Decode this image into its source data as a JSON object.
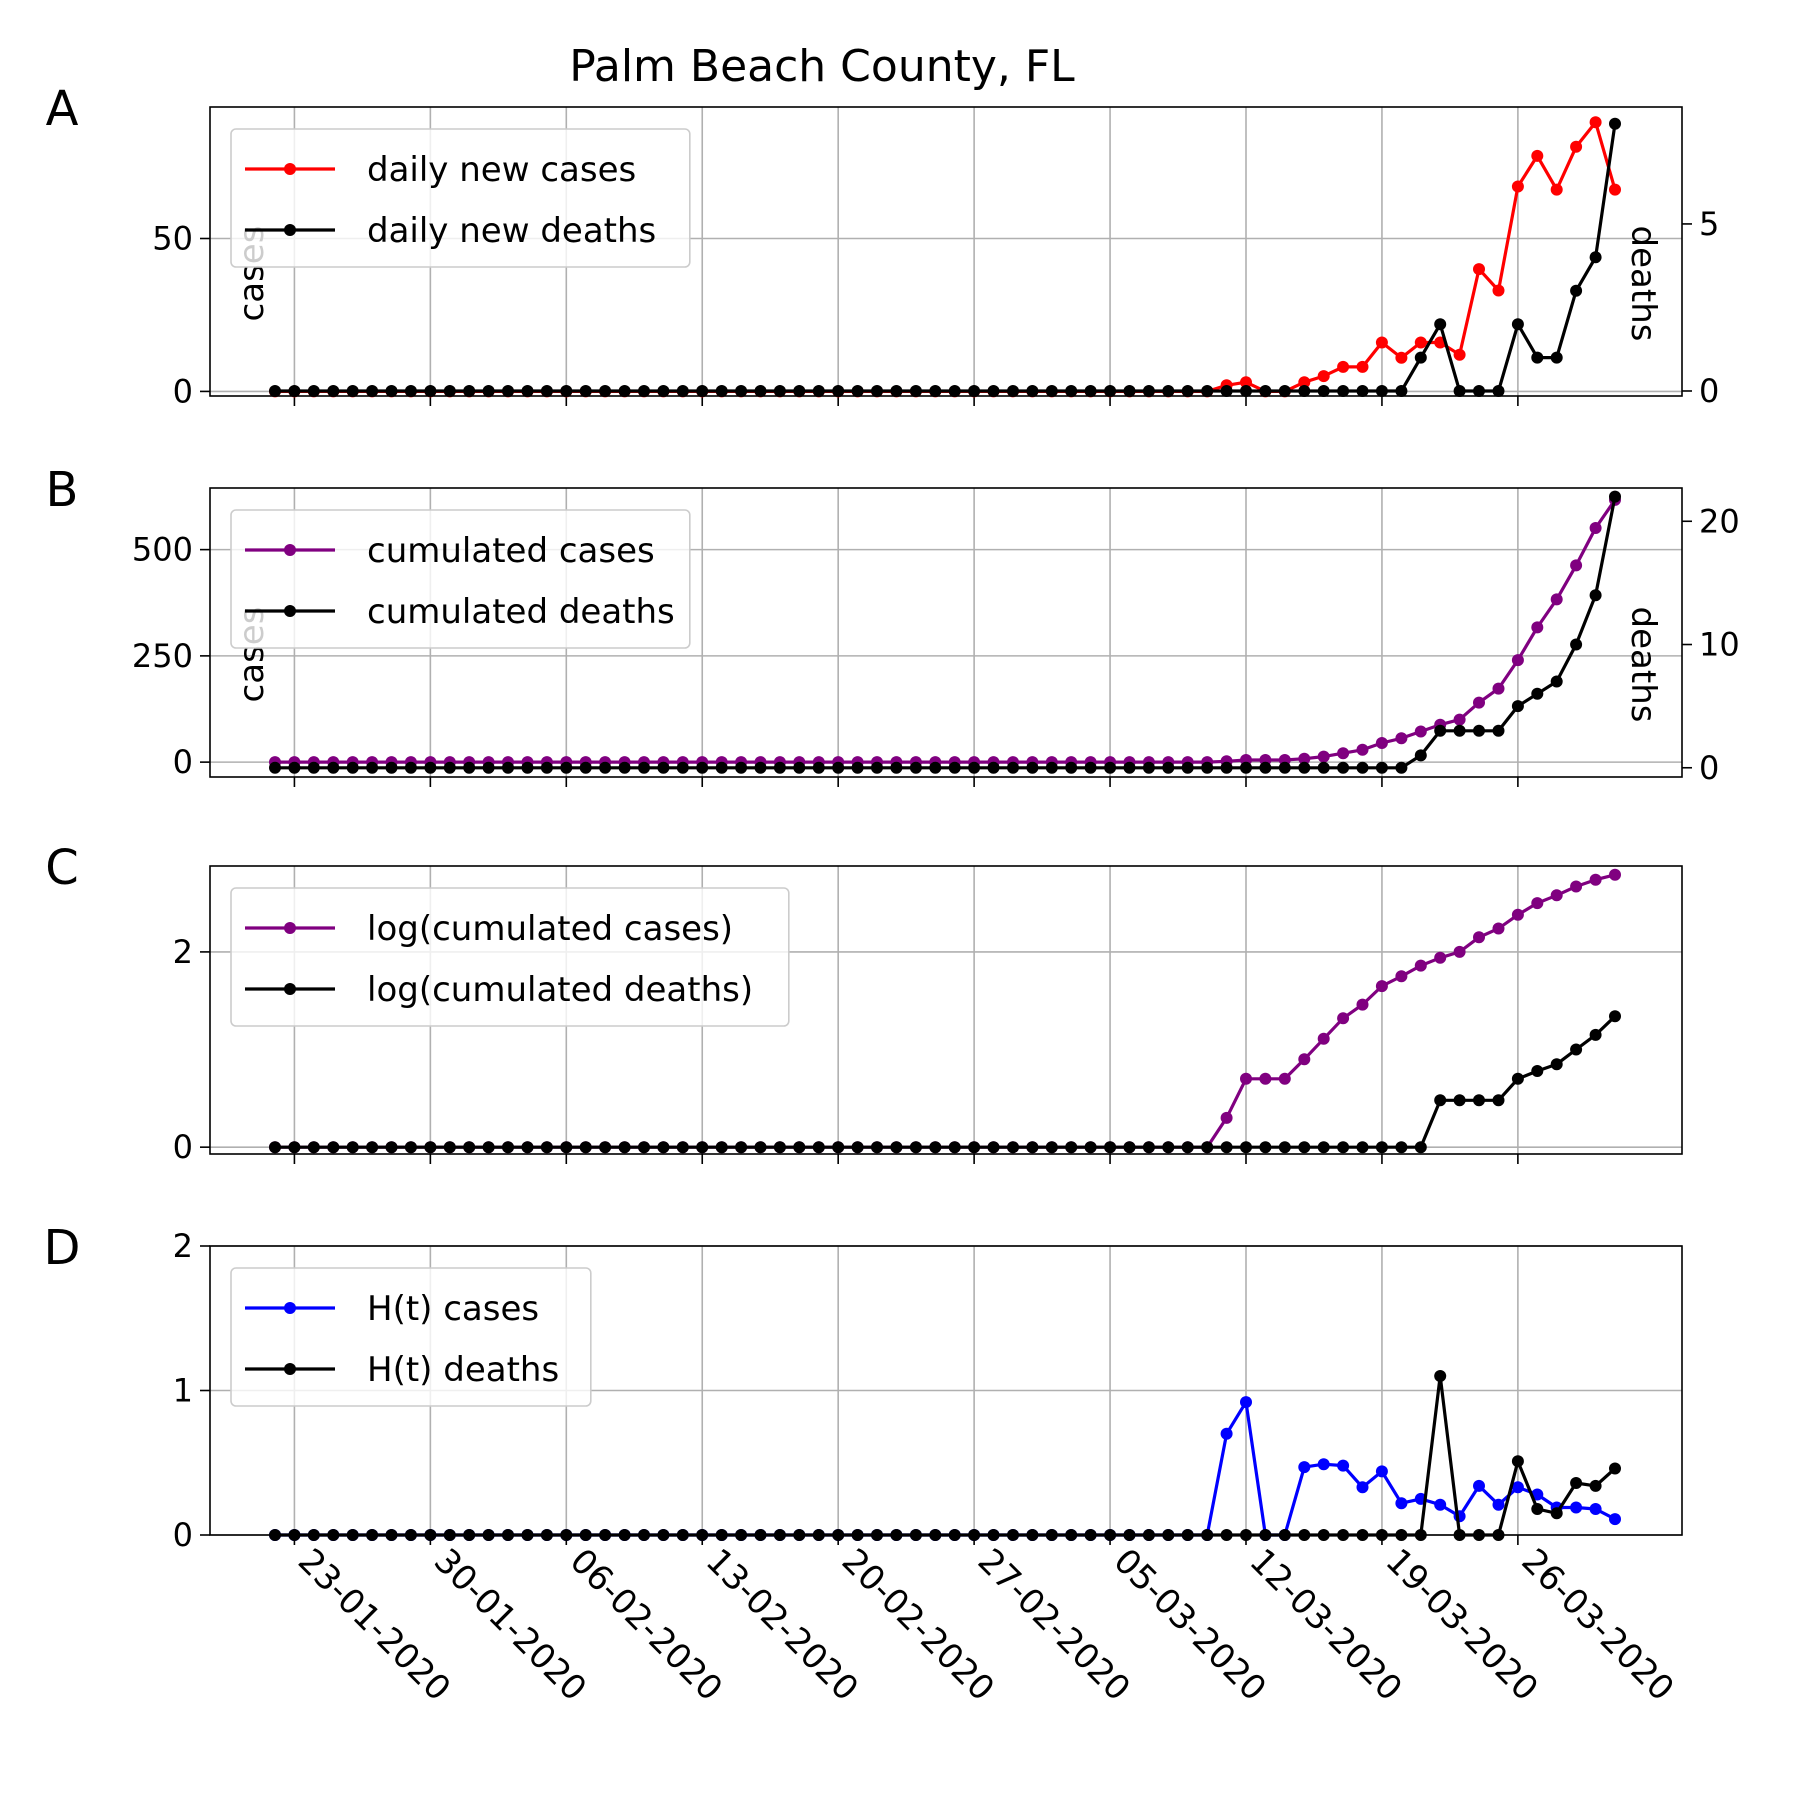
{
  "figure": {
    "title": "Palm Beach County, FL",
    "xtick_labels": [
      "23-01-2020",
      "30-01-2020",
      "06-02-2020",
      "13-02-2020",
      "20-02-2020",
      "27-02-2020",
      "05-03-2020",
      "12-03-2020",
      "19-03-2020",
      "26-03-2020"
    ]
  },
  "chart_data": [
    {
      "panel": "A",
      "type": "line",
      "x_start": "2020-01-22",
      "x_end": "2020-03-31",
      "ylabel_left": "cases",
      "ylabel_right": "deaths",
      "left_ylim": [
        -1.5,
        93
      ],
      "left_yticks": [
        0,
        50
      ],
      "right_ylim": [
        -0.15,
        8.5
      ],
      "right_yticks": [
        0,
        5
      ],
      "legend_placement": "top-left",
      "grid": true,
      "series": [
        {
          "name": "daily new cases",
          "color": "#ff0000",
          "axis": "left",
          "values": [
            0,
            0,
            0,
            0,
            0,
            0,
            0,
            0,
            0,
            0,
            0,
            0,
            0,
            0,
            0,
            0,
            0,
            0,
            0,
            0,
            0,
            0,
            0,
            0,
            0,
            0,
            0,
            0,
            0,
            0,
            0,
            0,
            0,
            0,
            0,
            0,
            0,
            0,
            0,
            0,
            0,
            0,
            0,
            0,
            0,
            0,
            0,
            0,
            0,
            2,
            3,
            0,
            0,
            3,
            5,
            8,
            8,
            16,
            11,
            16,
            16,
            12,
            40,
            33,
            67,
            77,
            66,
            80,
            88,
            66
          ]
        },
        {
          "name": "daily new deaths",
          "color": "#000000",
          "axis": "right",
          "values": [
            0,
            0,
            0,
            0,
            0,
            0,
            0,
            0,
            0,
            0,
            0,
            0,
            0,
            0,
            0,
            0,
            0,
            0,
            0,
            0,
            0,
            0,
            0,
            0,
            0,
            0,
            0,
            0,
            0,
            0,
            0,
            0,
            0,
            0,
            0,
            0,
            0,
            0,
            0,
            0,
            0,
            0,
            0,
            0,
            0,
            0,
            0,
            0,
            0,
            0,
            0,
            0,
            0,
            0,
            0,
            0,
            0,
            0,
            0,
            1,
            2,
            0,
            0,
            0,
            2,
            1,
            1,
            3,
            4,
            8
          ]
        }
      ]
    },
    {
      "panel": "B",
      "type": "line",
      "x_start": "2020-01-22",
      "x_end": "2020-03-31",
      "ylabel_left": "cases",
      "ylabel_right": "deaths",
      "left_ylim": [
        -35,
        645
      ],
      "left_yticks": [
        0,
        250,
        500
      ],
      "right_ylim": [
        -0.75,
        22.7
      ],
      "right_yticks": [
        0,
        10,
        20
      ],
      "legend_placement": "top-left",
      "grid": true,
      "series": [
        {
          "name": "cumulated cases",
          "color": "#800080",
          "axis": "left",
          "values": [
            0,
            0,
            0,
            0,
            0,
            0,
            0,
            0,
            0,
            0,
            0,
            0,
            0,
            0,
            0,
            0,
            0,
            0,
            0,
            0,
            0,
            0,
            0,
            0,
            0,
            0,
            0,
            0,
            0,
            0,
            0,
            0,
            0,
            0,
            0,
            0,
            0,
            0,
            0,
            0,
            0,
            0,
            0,
            0,
            0,
            0,
            0,
            0,
            0,
            2,
            5,
            5,
            5,
            8,
            13,
            21,
            29,
            45,
            56,
            72,
            88,
            100,
            140,
            173,
            240,
            317,
            383,
            463,
            551,
            617
          ]
        },
        {
          "name": "cumulated deaths",
          "color": "#000000",
          "axis": "right",
          "values": [
            0,
            0,
            0,
            0,
            0,
            0,
            0,
            0,
            0,
            0,
            0,
            0,
            0,
            0,
            0,
            0,
            0,
            0,
            0,
            0,
            0,
            0,
            0,
            0,
            0,
            0,
            0,
            0,
            0,
            0,
            0,
            0,
            0,
            0,
            0,
            0,
            0,
            0,
            0,
            0,
            0,
            0,
            0,
            0,
            0,
            0,
            0,
            0,
            0,
            0,
            0,
            0,
            0,
            0,
            0,
            0,
            0,
            0,
            0,
            1,
            3,
            3,
            3,
            3,
            5,
            6,
            7,
            10,
            14,
            22
          ]
        }
      ]
    },
    {
      "panel": "C",
      "type": "line",
      "x_start": "2020-01-22",
      "x_end": "2020-03-31",
      "ylim": [
        -0.07,
        2.88
      ],
      "yticks": [
        0,
        2
      ],
      "legend_placement": "top-left",
      "grid": true,
      "series": [
        {
          "name": "log(cumulated cases)",
          "color": "#800080",
          "values": [
            0,
            0,
            0,
            0,
            0,
            0,
            0,
            0,
            0,
            0,
            0,
            0,
            0,
            0,
            0,
            0,
            0,
            0,
            0,
            0,
            0,
            0,
            0,
            0,
            0,
            0,
            0,
            0,
            0,
            0,
            0,
            0,
            0,
            0,
            0,
            0,
            0,
            0,
            0,
            0,
            0,
            0,
            0,
            0,
            0,
            0,
            0,
            0,
            0,
            0.3,
            0.7,
            0.7,
            0.7,
            0.9,
            1.11,
            1.32,
            1.46,
            1.65,
            1.75,
            1.86,
            1.94,
            2.0,
            2.15,
            2.24,
            2.38,
            2.5,
            2.58,
            2.67,
            2.74,
            2.79
          ]
        },
        {
          "name": "log(cumulated deaths)",
          "color": "#000000",
          "values": [
            0,
            0,
            0,
            0,
            0,
            0,
            0,
            0,
            0,
            0,
            0,
            0,
            0,
            0,
            0,
            0,
            0,
            0,
            0,
            0,
            0,
            0,
            0,
            0,
            0,
            0,
            0,
            0,
            0,
            0,
            0,
            0,
            0,
            0,
            0,
            0,
            0,
            0,
            0,
            0,
            0,
            0,
            0,
            0,
            0,
            0,
            0,
            0,
            0,
            0,
            0,
            0,
            0,
            0,
            0,
            0,
            0,
            0,
            0,
            0,
            0.48,
            0.48,
            0.48,
            0.48,
            0.7,
            0.78,
            0.85,
            1.0,
            1.15,
            1.34
          ]
        }
      ]
    },
    {
      "panel": "D",
      "type": "line",
      "x_start": "2020-01-22",
      "x_end": "2020-03-31",
      "ylim": [
        0,
        2
      ],
      "yticks": [
        0,
        1,
        2
      ],
      "legend_placement": "top-left",
      "grid": true,
      "series": [
        {
          "name": "H(t) cases",
          "color": "#0000ff",
          "values": [
            0,
            0,
            0,
            0,
            0,
            0,
            0,
            0,
            0,
            0,
            0,
            0,
            0,
            0,
            0,
            0,
            0,
            0,
            0,
            0,
            0,
            0,
            0,
            0,
            0,
            0,
            0,
            0,
            0,
            0,
            0,
            0,
            0,
            0,
            0,
            0,
            0,
            0,
            0,
            0,
            0,
            0,
            0,
            0,
            0,
            0,
            0,
            0,
            0,
            0.7,
            0.92,
            0,
            0,
            0.47,
            0.49,
            0.48,
            0.33,
            0.44,
            0.22,
            0.25,
            0.21,
            0.13,
            0.34,
            0.21,
            0.33,
            0.28,
            0.19,
            0.19,
            0.18,
            0.11
          ]
        },
        {
          "name": "H(t) deaths",
          "color": "#000000",
          "values": [
            0,
            0,
            0,
            0,
            0,
            0,
            0,
            0,
            0,
            0,
            0,
            0,
            0,
            0,
            0,
            0,
            0,
            0,
            0,
            0,
            0,
            0,
            0,
            0,
            0,
            0,
            0,
            0,
            0,
            0,
            0,
            0,
            0,
            0,
            0,
            0,
            0,
            0,
            0,
            0,
            0,
            0,
            0,
            0,
            0,
            0,
            0,
            0,
            0,
            0,
            0,
            0,
            0,
            0,
            0,
            0,
            0,
            0,
            0,
            0,
            1.1,
            0,
            0,
            0,
            0.51,
            0.18,
            0.15,
            0.36,
            0.34,
            0.46
          ]
        }
      ]
    }
  ]
}
